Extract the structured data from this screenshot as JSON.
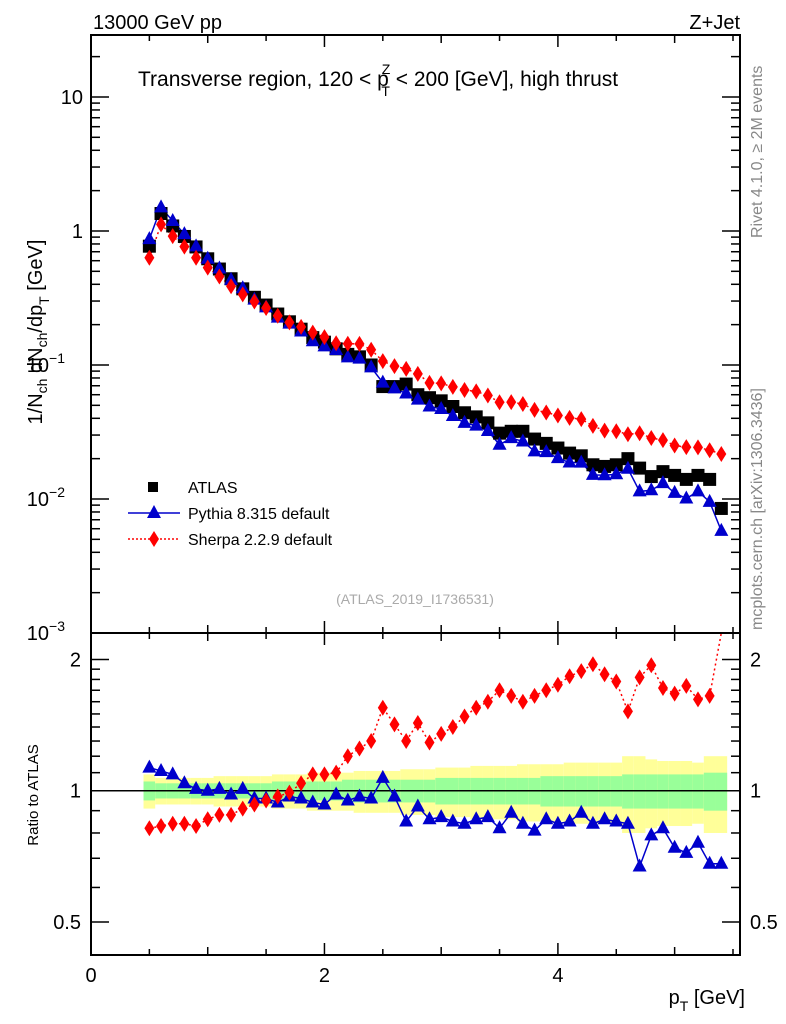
{
  "header": {
    "left": "13000 GeV pp",
    "right": "Z+Jet",
    "subtitle_pre": "Transverse region, 120 < p",
    "subtitle_sup": "Z",
    "subtitle_sub": "T",
    "subtitle_post": " < 200 [GeV], high thrust"
  },
  "side": {
    "rivet": "Rivet 4.1.0, ≥ 2M events",
    "mcplots": "mcplots.cern.ch [arXiv:1306.3436]"
  },
  "analysis_id": "(ATLAS_2019_I1736531)",
  "chart_data": [
    {
      "type": "scatter",
      "title": "Transverse region, 120 < pT^Z < 200 [GeV], high thrust",
      "xlabel": "p_T [GeV]",
      "ylabel": "1/N_ch dN_ch/dp_T [GeV]",
      "xlim": [
        0,
        5.56
      ],
      "ylim": [
        0.001,
        29
      ],
      "yscale": "log",
      "ytick_labels": [
        "10",
        "1",
        "10^-1",
        "10^-2",
        "10^-3"
      ],
      "ytick_values": [
        10,
        1,
        0.1,
        0.01,
        0.001
      ],
      "legend": {
        "placement": "lower-left",
        "entries": [
          "ATLAS",
          "Pythia 8.315 default",
          "Sherpa 2.2.9 default"
        ]
      },
      "x": [
        0.5,
        0.6,
        0.7,
        0.8,
        0.9,
        1.0,
        1.1,
        1.2,
        1.3,
        1.4,
        1.5,
        1.6,
        1.7,
        1.8,
        1.9,
        2.0,
        2.1,
        2.2,
        2.3,
        2.4,
        2.5,
        2.6,
        2.7,
        2.8,
        2.9,
        3.0,
        3.1,
        3.2,
        3.3,
        3.4,
        3.5,
        3.6,
        3.7,
        3.8,
        3.9,
        4.0,
        4.1,
        4.2,
        4.3,
        4.4,
        4.5,
        4.6,
        4.7,
        4.8,
        4.9,
        5.0,
        5.1,
        5.2,
        5.3,
        5.4
      ],
      "series": [
        {
          "name": "ATLAS",
          "color": "#000000",
          "marker": "square",
          "values": [
            0.77,
            1.35,
            1.09,
            0.91,
            0.76,
            0.62,
            0.52,
            0.44,
            0.37,
            0.32,
            0.28,
            0.24,
            0.21,
            0.185,
            0.16,
            0.148,
            0.132,
            0.12,
            0.115,
            0.1,
            0.069,
            0.069,
            0.072,
            0.06,
            0.057,
            0.054,
            0.049,
            0.044,
            0.041,
            0.037,
            0.031,
            0.032,
            0.032,
            0.028,
            0.026,
            0.024,
            0.022,
            0.021,
            0.018,
            0.0175,
            0.018,
            0.02,
            0.017,
            0.0147,
            0.016,
            0.015,
            0.014,
            0.015,
            0.014,
            0.0085
          ]
        },
        {
          "name": "Pythia 8.315 default",
          "color": "#0000cc",
          "marker": "triangle",
          "line": "solid",
          "ratio": [
            1.13,
            1.11,
            1.09,
            1.04,
            1.01,
            1.0,
            1.01,
            0.98,
            1.01,
            0.96,
            0.96,
            0.94,
            0.97,
            0.96,
            0.94,
            0.93,
            0.98,
            0.95,
            0.97,
            0.96,
            1.07,
            0.97,
            0.85,
            0.92,
            0.86,
            0.87,
            0.85,
            0.84,
            0.86,
            0.87,
            0.82,
            0.89,
            0.84,
            0.81,
            0.86,
            0.84,
            0.85,
            0.89,
            0.84,
            0.86,
            0.85,
            0.84,
            0.67,
            0.79,
            0.82,
            0.74,
            0.72,
            0.76,
            0.68,
            0.68
          ]
        },
        {
          "name": "Sherpa 2.2.9 default",
          "color": "#ff0000",
          "marker": "diamond",
          "line": "dotted",
          "ratio": [
            0.82,
            0.83,
            0.84,
            0.84,
            0.83,
            0.86,
            0.88,
            0.88,
            0.91,
            0.93,
            0.95,
            0.97,
            0.99,
            1.04,
            1.09,
            1.09,
            1.1,
            1.2,
            1.25,
            1.3,
            1.55,
            1.42,
            1.3,
            1.43,
            1.29,
            1.35,
            1.4,
            1.48,
            1.55,
            1.6,
            1.7,
            1.65,
            1.6,
            1.65,
            1.7,
            1.75,
            1.83,
            1.88,
            1.95,
            1.85,
            1.78,
            1.52,
            1.82,
            1.94,
            1.72,
            1.67,
            1.74,
            1.62,
            1.65,
            2.55
          ]
        }
      ]
    },
    {
      "type": "scatter",
      "ylabel": "Ratio to ATLAS",
      "yscale": "log",
      "ylim": [
        0.42,
        2.3
      ],
      "ytick_labels": [
        "0.5",
        "1",
        "2"
      ],
      "ytick_values": [
        0.5,
        1,
        2
      ],
      "xtick_labels": [
        "0",
        "2",
        "4"
      ],
      "xtick_values": [
        0,
        2,
        4
      ],
      "band_stat_sys_inner": [
        0.05,
        0.04,
        0.04,
        0.04,
        0.04,
        0.04,
        0.04,
        0.04,
        0.04,
        0.04,
        0.04,
        0.05,
        0.05,
        0.05,
        0.05,
        0.05,
        0.05,
        0.06,
        0.06,
        0.06,
        0.06,
        0.06,
        0.06,
        0.06,
        0.06,
        0.07,
        0.07,
        0.07,
        0.07,
        0.07,
        0.07,
        0.07,
        0.07,
        0.07,
        0.08,
        0.08,
        0.08,
        0.08,
        0.08,
        0.08,
        0.08,
        0.09,
        0.09,
        0.09,
        0.09,
        0.09,
        0.09,
        0.09,
        0.1,
        0.1
      ],
      "band_stat_sys_outer": [
        0.09,
        0.07,
        0.07,
        0.07,
        0.07,
        0.07,
        0.08,
        0.08,
        0.08,
        0.08,
        0.08,
        0.09,
        0.09,
        0.09,
        0.1,
        0.1,
        0.1,
        0.1,
        0.11,
        0.11,
        0.11,
        0.11,
        0.12,
        0.12,
        0.12,
        0.13,
        0.13,
        0.13,
        0.14,
        0.14,
        0.14,
        0.14,
        0.15,
        0.15,
        0.15,
        0.15,
        0.16,
        0.16,
        0.16,
        0.16,
        0.16,
        0.2,
        0.2,
        0.18,
        0.17,
        0.17,
        0.17,
        0.16,
        0.2,
        0.2
      ],
      "band_colors": {
        "inner": "#99ff99",
        "outer": "#ffff99"
      }
    }
  ]
}
